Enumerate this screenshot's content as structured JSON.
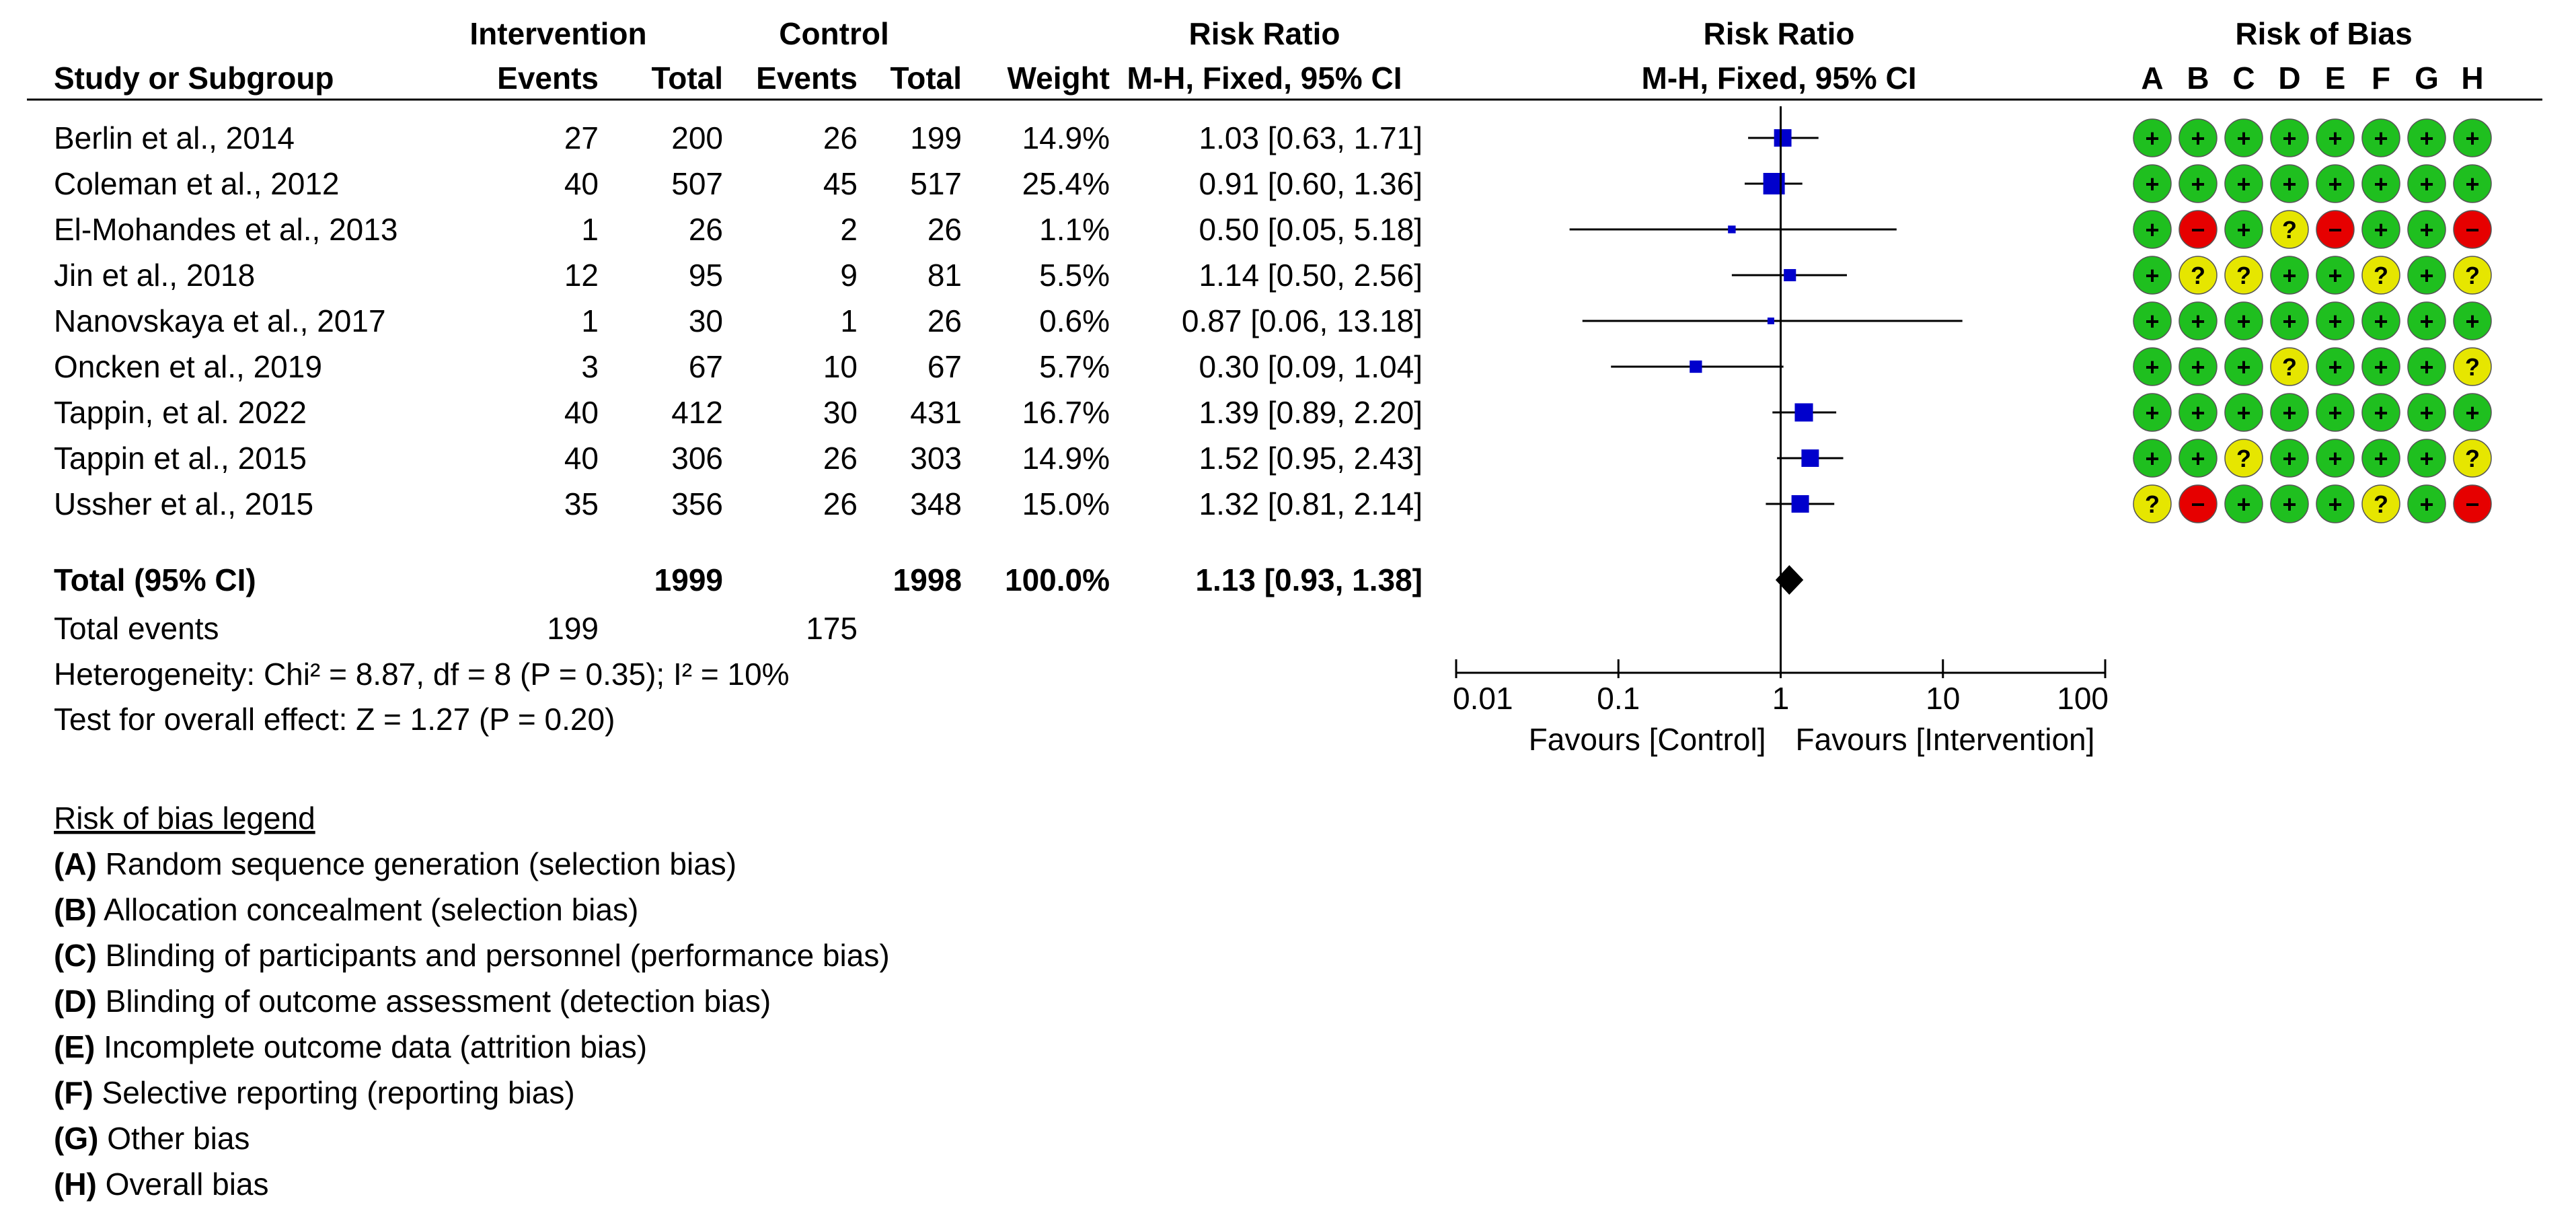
{
  "colors": {
    "square": "#0000cc",
    "diamond": "#000000",
    "low": "#1fbf1f",
    "unclear": "#e6e600",
    "high": "#e60000",
    "text": "#000000"
  },
  "headers": {
    "intervention": "Intervention",
    "control": "Control",
    "rr_group": "Risk Ratio",
    "plot_group": "Risk Ratio",
    "rob_group": "Risk of Bias",
    "study": "Study or Subgroup",
    "events": "Events",
    "total": "Total",
    "weight": "Weight",
    "method": "M-H, Fixed, 95% CI",
    "plot_method": "M-H, Fixed, 95% CI",
    "rob_letters": [
      "A",
      "B",
      "C",
      "D",
      "E",
      "F",
      "G",
      "H"
    ]
  },
  "rob_symbols": {
    "low": "+",
    "unclear": "?",
    "high": "−"
  },
  "studies": [
    {
      "name": "Berlin et al., 2014",
      "int_events": "27",
      "int_total": "200",
      "ctrl_events": "26",
      "ctrl_total": "199",
      "weight": "14.9%",
      "ci_text": "1.03 [0.63, 1.71]",
      "rr": 1.03,
      "lo": 0.63,
      "hi": 1.71,
      "w": 14.9,
      "rob": [
        "low",
        "low",
        "low",
        "low",
        "low",
        "low",
        "low",
        "low"
      ]
    },
    {
      "name": "Coleman et al., 2012",
      "int_events": "40",
      "int_total": "507",
      "ctrl_events": "45",
      "ctrl_total": "517",
      "weight": "25.4%",
      "ci_text": "0.91 [0.60, 1.36]",
      "rr": 0.91,
      "lo": 0.6,
      "hi": 1.36,
      "w": 25.4,
      "rob": [
        "low",
        "low",
        "low",
        "low",
        "low",
        "low",
        "low",
        "low"
      ]
    },
    {
      "name": "El-Mohandes et al., 2013",
      "int_events": "1",
      "int_total": "26",
      "ctrl_events": "2",
      "ctrl_total": "26",
      "weight": "1.1%",
      "ci_text": "0.50 [0.05, 5.18]",
      "rr": 0.5,
      "lo": 0.05,
      "hi": 5.18,
      "w": 1.1,
      "rob": [
        "low",
        "high",
        "low",
        "unclear",
        "high",
        "low",
        "low",
        "high"
      ]
    },
    {
      "name": "Jin et al., 2018",
      "int_events": "12",
      "int_total": "95",
      "ctrl_events": "9",
      "ctrl_total": "81",
      "weight": "5.5%",
      "ci_text": "1.14 [0.50, 2.56]",
      "rr": 1.14,
      "lo": 0.5,
      "hi": 2.56,
      "w": 5.5,
      "rob": [
        "low",
        "unclear",
        "unclear",
        "low",
        "low",
        "unclear",
        "low",
        "unclear"
      ]
    },
    {
      "name": "Nanovskaya et al., 2017",
      "int_events": "1",
      "int_total": "30",
      "ctrl_events": "1",
      "ctrl_total": "26",
      "weight": "0.6%",
      "ci_text": "0.87 [0.06, 13.18]",
      "rr": 0.87,
      "lo": 0.06,
      "hi": 13.18,
      "w": 0.6,
      "rob": [
        "low",
        "low",
        "low",
        "low",
        "low",
        "low",
        "low",
        "low"
      ]
    },
    {
      "name": "Oncken et al., 2019",
      "int_events": "3",
      "int_total": "67",
      "ctrl_events": "10",
      "ctrl_total": "67",
      "weight": "5.7%",
      "ci_text": "0.30 [0.09, 1.04]",
      "rr": 0.3,
      "lo": 0.09,
      "hi": 1.04,
      "w": 5.7,
      "rob": [
        "low",
        "low",
        "low",
        "unclear",
        "low",
        "low",
        "low",
        "unclear"
      ]
    },
    {
      "name": "Tappin, et al. 2022",
      "int_events": "40",
      "int_total": "412",
      "ctrl_events": "30",
      "ctrl_total": "431",
      "weight": "16.7%",
      "ci_text": "1.39 [0.89, 2.20]",
      "rr": 1.39,
      "lo": 0.89,
      "hi": 2.2,
      "w": 16.7,
      "rob": [
        "low",
        "low",
        "low",
        "low",
        "low",
        "low",
        "low",
        "low"
      ]
    },
    {
      "name": "Tappin et al., 2015",
      "int_events": "40",
      "int_total": "306",
      "ctrl_events": "26",
      "ctrl_total": "303",
      "weight": "14.9%",
      "ci_text": "1.52 [0.95, 2.43]",
      "rr": 1.52,
      "lo": 0.95,
      "hi": 2.43,
      "w": 14.9,
      "rob": [
        "low",
        "low",
        "unclear",
        "low",
        "low",
        "low",
        "low",
        "unclear"
      ]
    },
    {
      "name": "Ussher et al., 2015",
      "int_events": "35",
      "int_total": "356",
      "ctrl_events": "26",
      "ctrl_total": "348",
      "weight": "15.0%",
      "ci_text": "1.32 [0.81, 2.14]",
      "rr": 1.32,
      "lo": 0.81,
      "hi": 2.14,
      "w": 15.0,
      "rob": [
        "unclear",
        "high",
        "low",
        "low",
        "low",
        "unclear",
        "low",
        "high"
      ]
    }
  ],
  "total": {
    "label": "Total (95% CI)",
    "int_total": "1999",
    "ctrl_total": "1998",
    "weight": "100.0%",
    "ci_text": "1.13 [0.93, 1.38]",
    "rr": 1.13,
    "lo": 0.93,
    "hi": 1.38
  },
  "total_events": {
    "label": "Total events",
    "int": "199",
    "ctrl": "175"
  },
  "heterogeneity": "Heterogeneity: Chi² = 8.87, df = 8 (P = 0.35); I² = 10%",
  "overall_effect": "Test for overall effect: Z = 1.27 (P = 0.20)",
  "chart_data": {
    "type": "forest",
    "title": "Risk Ratio M-H, Fixed, 95% CI",
    "scale": "log",
    "xlim": [
      0.01,
      100
    ],
    "ticks": [
      0.01,
      0.1,
      1,
      10,
      100
    ],
    "tick_labels": [
      "0.01",
      "0.1",
      "1",
      "10",
      "100"
    ],
    "xlabel_left": "Favours [Control]",
    "xlabel_right": "Favours [Intervention]",
    "reference_line": 1
  },
  "legend": {
    "title": "Risk of bias legend",
    "items": [
      {
        "letter": "(A)",
        "text": " Random sequence generation (selection bias)"
      },
      {
        "letter": "(B)",
        "text": " Allocation concealment (selection bias)"
      },
      {
        "letter": "(C)",
        "text": " Blinding of participants and personnel (performance bias)"
      },
      {
        "letter": "(D)",
        "text": " Blinding of outcome assessment (detection bias)"
      },
      {
        "letter": "(E)",
        "text": " Incomplete outcome data (attrition bias)"
      },
      {
        "letter": "(F)",
        "text": " Selective reporting (reporting bias)"
      },
      {
        "letter": "(G)",
        "text": " Other bias"
      },
      {
        "letter": "(H)",
        "text": " Overall bias"
      }
    ]
  }
}
